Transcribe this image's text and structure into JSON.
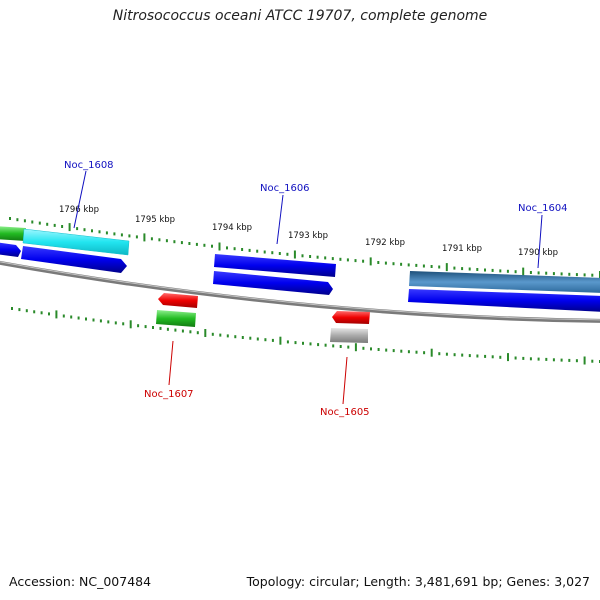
{
  "title": "Nitrosococcus oceani ATCC 19707, complete genome",
  "footer": {
    "accession": "Accession: NC_007484",
    "summary": "Topology: circular; Length: 3,481,691 bp; Genes: 3,027"
  },
  "scale_labels": [
    "1796 kbp",
    "1795 kbp",
    "1794 kbp",
    "1793 kbp",
    "1792 kbp",
    "1791 kbp",
    "1790 kbp"
  ],
  "gene_labels": {
    "noc_1608": "Noc_1608",
    "noc_1607": "Noc_1607",
    "noc_1606": "Noc_1606",
    "noc_1605": "Noc_1605",
    "noc_1604": "Noc_1604"
  },
  "colors": {
    "forward_label": "#1010c0",
    "reverse_label": "#cc0000",
    "cds_blue": "#0000ee",
    "cds_cyan": "#22e5f0",
    "cds_steelblue": "#3a7ab0",
    "cds_red": "#ee0000",
    "cds_green": "#22bb22",
    "cds_gray": "#aaaaaa",
    "tick_green": "#2a8a2a",
    "backbone": "#777777"
  }
}
